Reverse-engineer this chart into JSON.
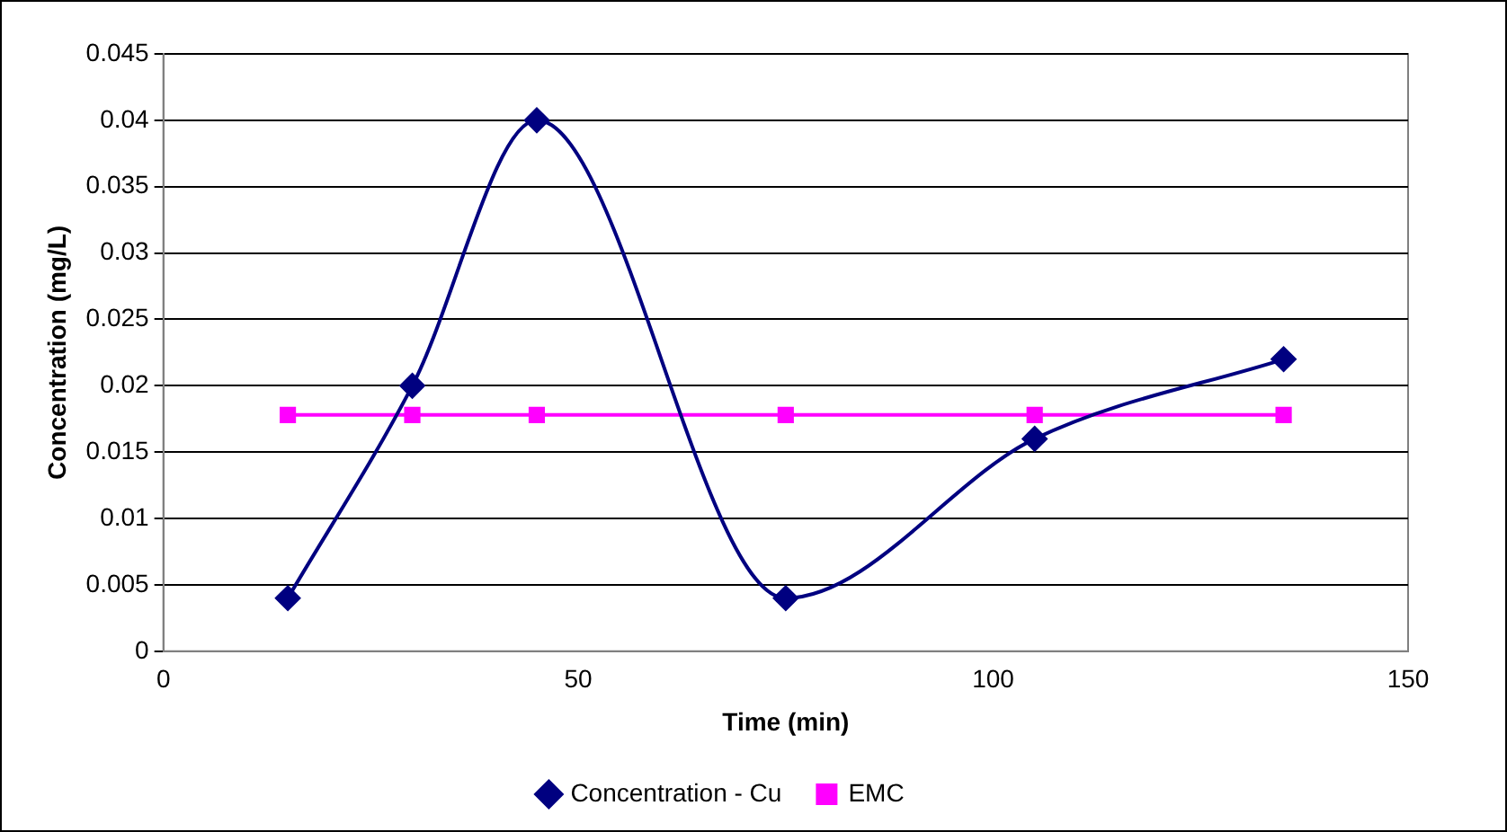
{
  "chart_data": {
    "type": "line",
    "xlabel": "Time (min)",
    "ylabel": "Concentration (mg/L)",
    "x": [
      15,
      30,
      45,
      75,
      105,
      135
    ],
    "series": [
      {
        "name": "Concentration - Cu",
        "color": "#000080",
        "marker": "diamond",
        "values": [
          0.004,
          0.02,
          0.04,
          0.004,
          0.016,
          0.022
        ]
      },
      {
        "name": "EMC",
        "color": "#ff00ff",
        "marker": "square",
        "values": [
          0.0178,
          0.0178,
          0.0178,
          0.0178,
          0.0178,
          0.0178
        ]
      }
    ],
    "xlim": [
      0,
      150
    ],
    "xticks": [
      0,
      50,
      100,
      150
    ],
    "ylim": [
      0,
      0.045
    ],
    "yticks": [
      0,
      0.005,
      0.01,
      0.015,
      0.02,
      0.025,
      0.03,
      0.035,
      0.04,
      0.045
    ],
    "grid": "y",
    "legend": "bottom"
  }
}
